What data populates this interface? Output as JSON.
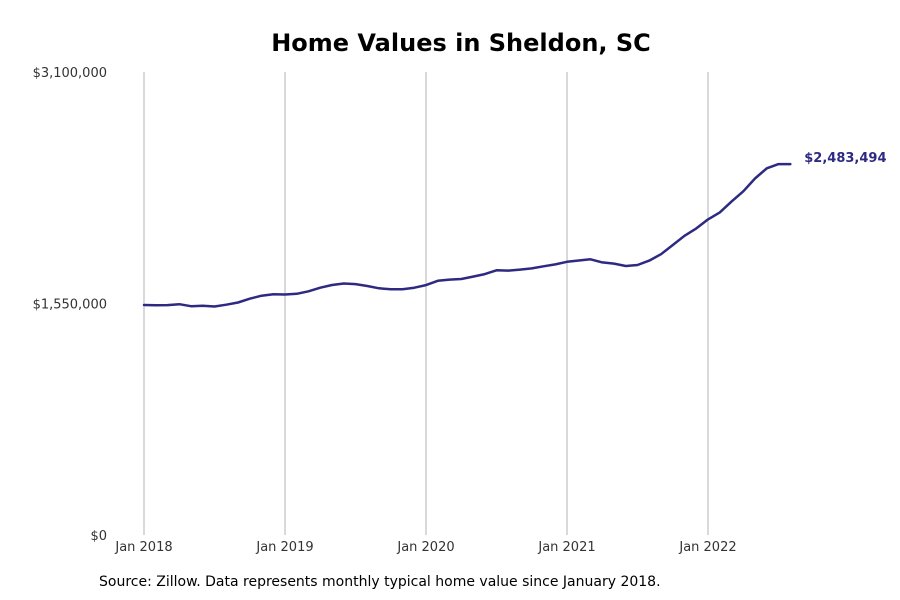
{
  "chart_data": {
    "type": "line",
    "title": "Home Values in Sheldon, SC",
    "xlabel": "",
    "ylabel": "",
    "y_ticks": [
      {
        "value": 0,
        "label": "$0"
      },
      {
        "value": 1550000,
        "label": "$1,550,000"
      },
      {
        "value": 3100000,
        "label": "$3,100,000"
      }
    ],
    "x_ticks": [
      {
        "value": "2018-01",
        "label": "Jan 2018"
      },
      {
        "value": "2019-01",
        "label": "Jan 2019"
      },
      {
        "value": "2020-01",
        "label": "Jan 2020"
      },
      {
        "value": "2021-01",
        "label": "Jan 2021"
      },
      {
        "value": "2022-01",
        "label": "Jan 2022"
      }
    ],
    "ylim": [
      0,
      3100000
    ],
    "xlim": [
      "2018-01",
      "2022-12"
    ],
    "grid": {
      "vertical": true,
      "horizontal": false
    },
    "line_color": "#2e2a82",
    "end_label": "$2,483,494",
    "series": [
      {
        "name": "",
        "x": [
          "2018-01",
          "2018-02",
          "2018-03",
          "2018-04",
          "2018-05",
          "2018-06",
          "2018-07",
          "2018-08",
          "2018-09",
          "2018-10",
          "2018-11",
          "2018-12",
          "2019-01",
          "2019-02",
          "2019-03",
          "2019-04",
          "2019-05",
          "2019-06",
          "2019-07",
          "2019-08",
          "2019-09",
          "2019-10",
          "2019-11",
          "2019-12",
          "2020-01",
          "2020-02",
          "2020-03",
          "2020-04",
          "2020-05",
          "2020-06",
          "2020-07",
          "2020-08",
          "2020-09",
          "2020-10",
          "2020-11",
          "2020-12",
          "2021-01",
          "2021-02",
          "2021-03",
          "2021-04",
          "2021-05",
          "2021-06",
          "2021-07",
          "2021-08",
          "2021-09",
          "2021-10",
          "2021-11",
          "2021-12",
          "2022-01",
          "2022-02",
          "2022-03",
          "2022-04",
          "2022-05",
          "2022-06",
          "2022-07",
          "2022-08"
        ],
        "values": [
          1540000,
          1538000,
          1539000,
          1545000,
          1532000,
          1535000,
          1530000,
          1542000,
          1557000,
          1582000,
          1602000,
          1612000,
          1610000,
          1615000,
          1632000,
          1656000,
          1674000,
          1684000,
          1680000,
          1667000,
          1652000,
          1645000,
          1646000,
          1656000,
          1673000,
          1702000,
          1710000,
          1714000,
          1730000,
          1747000,
          1772000,
          1770000,
          1777000,
          1785000,
          1799000,
          1812000,
          1829000,
          1838000,
          1846000,
          1825000,
          1817000,
          1801000,
          1808000,
          1837000,
          1880000,
          1942000,
          2003000,
          2053000,
          2113000,
          2160000,
          2232000,
          2301000,
          2387000,
          2455000,
          2483494,
          2483494
        ]
      }
    ]
  },
  "source_text": "Source: Zillow. Data represents monthly typical home value since January 2018."
}
